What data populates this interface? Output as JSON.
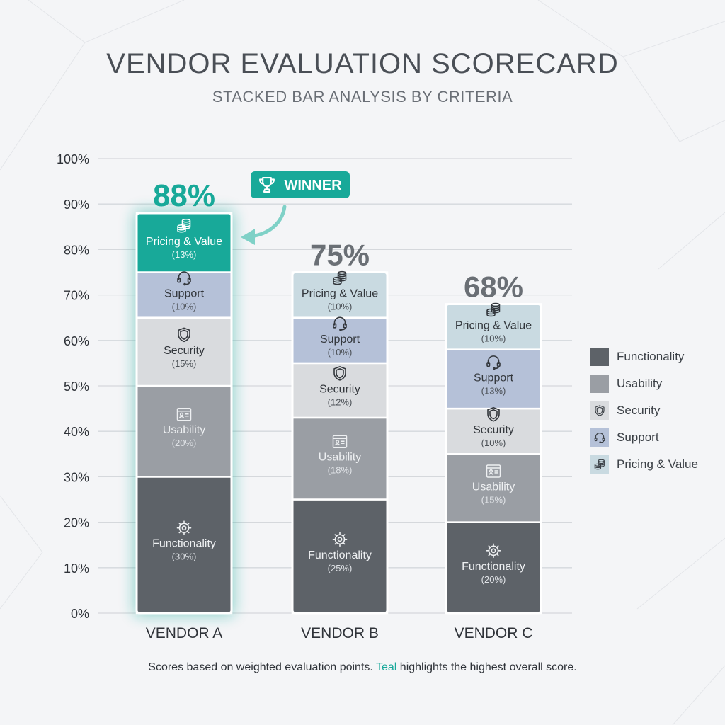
{
  "header": {
    "title": "VENDOR EVALUATION SCORECARD",
    "subtitle": "STACKED BAR ANALYSIS BY CRITERIA"
  },
  "badge": {
    "label": "WINNER",
    "icon": "trophy-icon"
  },
  "footnote": {
    "before": "Scores based on weighted evaluation points. ",
    "accent": "Teal",
    "after": " highlights the highest overall score."
  },
  "colors": {
    "functionality": "#5d6268",
    "usability": "#9a9ea4",
    "security": "#d9dbde",
    "support": "#b5c1d8",
    "pricing": "#c9dae1",
    "winner_accent": "#18a999",
    "grid": "#d5d8dc"
  },
  "legend": [
    {
      "key": "functionality",
      "label": "Functionality",
      "icon": "gear-icon"
    },
    {
      "key": "usability",
      "label": "Usability",
      "icon": "browser-window-icon"
    },
    {
      "key": "security",
      "label": "Security",
      "icon": "shield-icon"
    },
    {
      "key": "support",
      "label": "Support",
      "icon": "headset-icon"
    },
    {
      "key": "pricing",
      "label": "Pricing & Value",
      "icon": "coins-icon"
    }
  ],
  "chart_data": {
    "type": "bar",
    "stacked": true,
    "title": "VENDOR EVALUATION SCORECARD",
    "subtitle": "STACKED BAR ANALYSIS BY CRITERIA",
    "categories": [
      "VENDOR A",
      "VENDOR B",
      "VENDOR C"
    ],
    "totals": [
      88,
      75,
      68
    ],
    "total_labels": [
      "88%",
      "75%",
      "68%"
    ],
    "winner": "VENDOR A",
    "ylim": [
      0,
      100
    ],
    "y_ticks": [
      0,
      10,
      20,
      30,
      40,
      50,
      60,
      70,
      80,
      90,
      100
    ],
    "y_tick_labels": [
      "0%",
      "10%",
      "20%",
      "30%",
      "40%",
      "50%",
      "60%",
      "70%",
      "80%",
      "90%",
      "100%"
    ],
    "grid": true,
    "legend_position": "right",
    "series": [
      {
        "key": "functionality",
        "name": "Functionality",
        "values": [
          30,
          25,
          20
        ],
        "value_labels": [
          "(30%)",
          "(25%)",
          "(20%)"
        ]
      },
      {
        "key": "usability",
        "name": "Usability",
        "values": [
          20,
          18,
          15
        ],
        "value_labels": [
          "(20%)",
          "(18%)",
          "(15%)"
        ]
      },
      {
        "key": "security",
        "name": "Security",
        "values": [
          15,
          12,
          10
        ],
        "value_labels": [
          "(15%)",
          "(12%)",
          "(10%)"
        ]
      },
      {
        "key": "support",
        "name": "Support",
        "values": [
          10,
          10,
          13
        ],
        "value_labels": [
          "(10%)",
          "(10%)",
          "(13%)"
        ]
      },
      {
        "key": "pricing",
        "name": "Pricing & Value",
        "values": [
          13,
          10,
          10
        ],
        "value_labels": [
          "(13%)",
          "(10%)",
          "(10%)"
        ]
      }
    ]
  }
}
